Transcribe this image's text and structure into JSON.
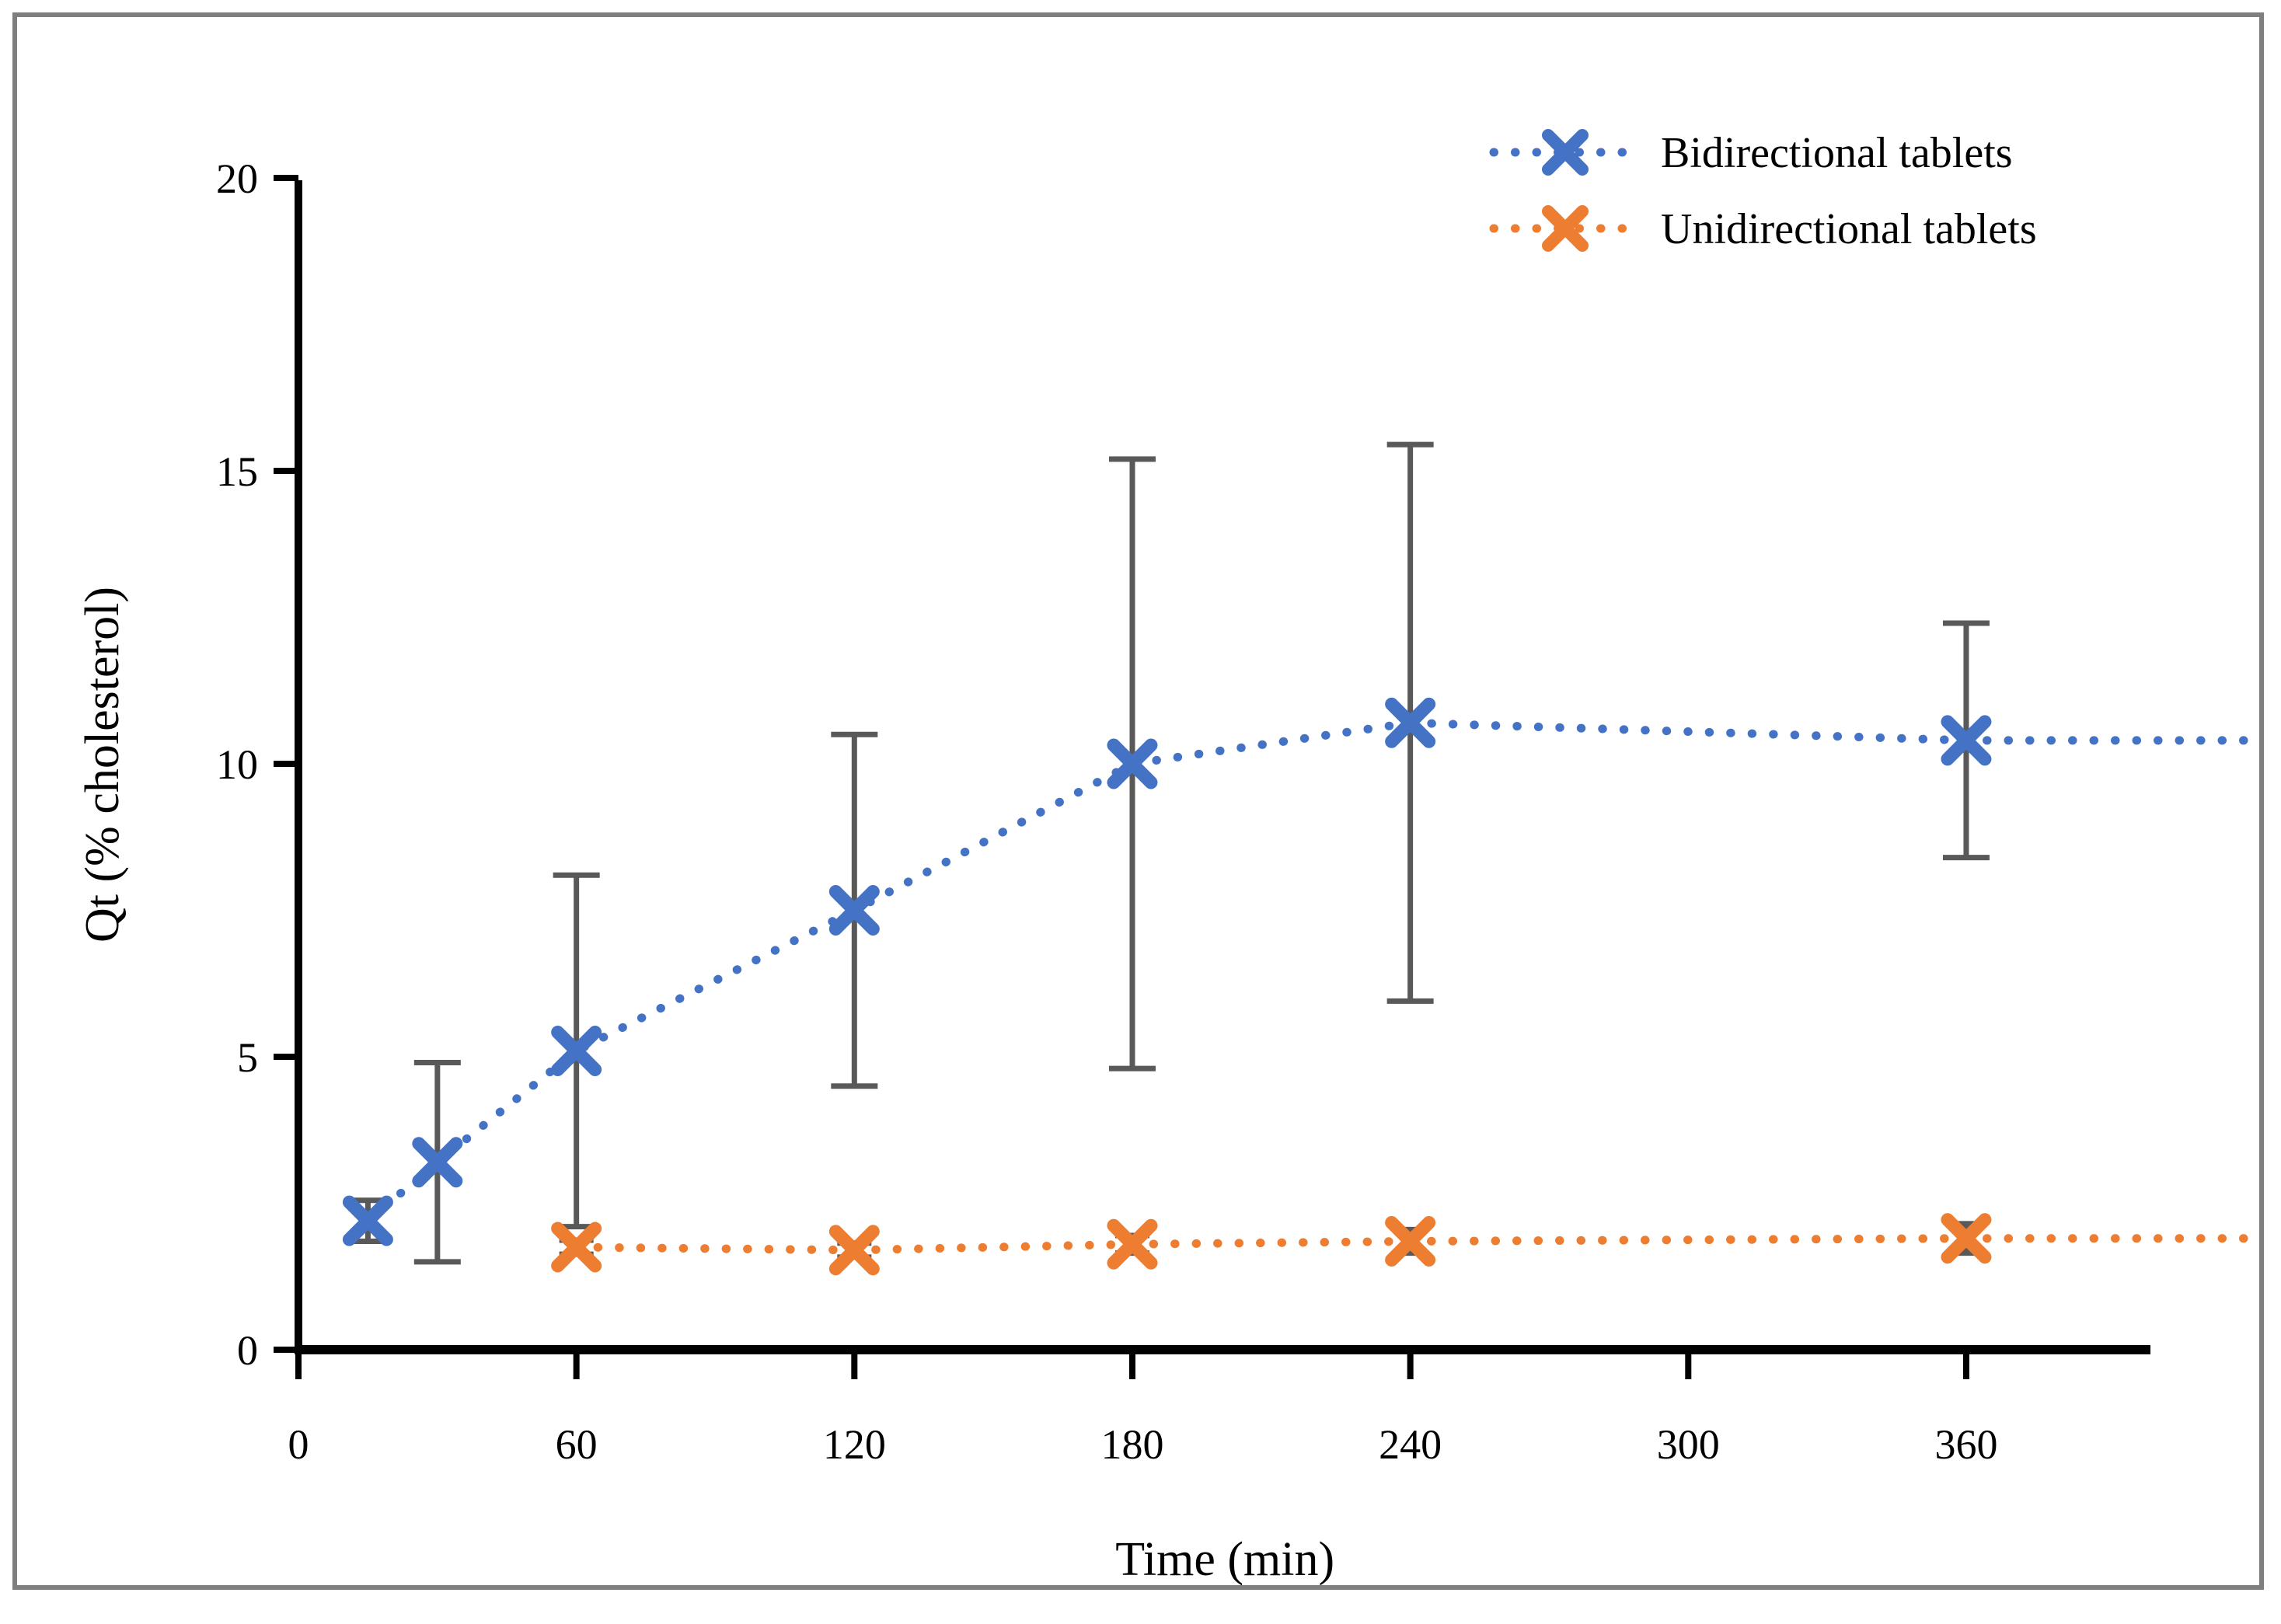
{
  "figure": {
    "border_color": "#7f7f7f",
    "background_color": "#ffffff"
  },
  "chart_data": {
    "type": "line",
    "title": "",
    "xlabel": "Time (min)",
    "ylabel": "Qt (% cholesterol)",
    "xlim": [
      0,
      400
    ],
    "ylim": [
      0,
      20
    ],
    "x_ticks": [
      0,
      60,
      120,
      180,
      240,
      300,
      360
    ],
    "y_ticks": [
      0,
      5,
      10,
      15,
      20
    ],
    "grid": false,
    "legend_position": "top-right",
    "axis_color": "#000000",
    "error_bar_color": "#595959",
    "line_style": "dotted",
    "marker": "x-cross",
    "series": [
      {
        "name": "Bidirectional tablets",
        "color": "#4472C4",
        "marker": "x-cross",
        "line_style": "dotted",
        "x": [
          15,
          30,
          60,
          120,
          180,
          240,
          360
        ],
        "y": [
          2.2,
          3.2,
          5.1,
          7.5,
          10.0,
          10.7,
          10.4
        ],
        "y_err": [
          0.35,
          1.7,
          3.0,
          3.0,
          5.2,
          4.75,
          2.0
        ]
      },
      {
        "name": "Unidirectional tablets",
        "color": "#ED7D31",
        "marker": "x-cross",
        "line_style": "dotted",
        "x": [
          60,
          120,
          180,
          240,
          360
        ],
        "y": [
          1.75,
          1.7,
          1.8,
          1.85,
          1.9
        ],
        "y_err": [
          0.12,
          0.12,
          0.15,
          0.2,
          0.25
        ]
      }
    ]
  }
}
